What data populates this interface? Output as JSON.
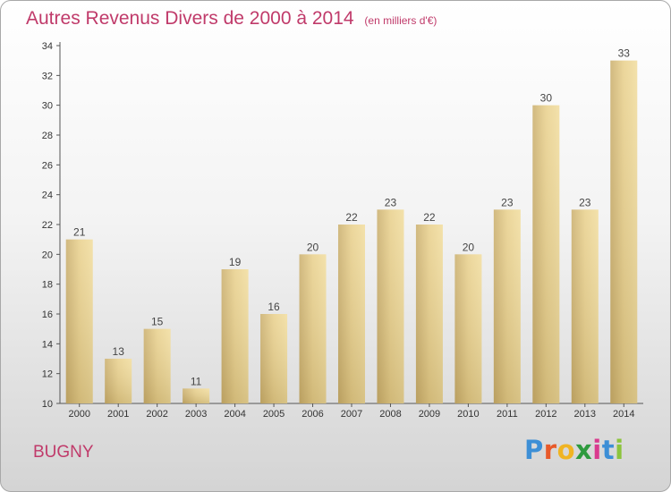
{
  "chart_data": {
    "type": "bar",
    "title": "Autres Revenus Divers de 2000 à 2014",
    "subtitle": "(en milliers d'€)",
    "categories": [
      "2000",
      "2001",
      "2002",
      "2003",
      "2004",
      "2005",
      "2006",
      "2007",
      "2008",
      "2009",
      "2010",
      "2011",
      "2012",
      "2013",
      "2014"
    ],
    "values": [
      21,
      13,
      15,
      11,
      19,
      16,
      20,
      22,
      23,
      22,
      20,
      23,
      30,
      23,
      33
    ],
    "ylim": [
      10,
      34
    ],
    "yticks": [
      10,
      12,
      14,
      16,
      18,
      20,
      22,
      24,
      26,
      28,
      30,
      32,
      34
    ],
    "xlabel": "",
    "ylabel": "",
    "grid": false,
    "bar_color": "#e8cf8a",
    "data_labels": true
  },
  "place_name": "BUGNY",
  "brand": {
    "letters": [
      "P",
      "r",
      "o",
      "x",
      "i",
      "t",
      "i"
    ],
    "colors": [
      "#3d8fd6",
      "#e85a2a",
      "#f0b423",
      "#2e9a3e",
      "#d93b8e",
      "#3d8fd6",
      "#8cc43c"
    ]
  },
  "colors": {
    "title": "#c03a6a",
    "text": "#333333"
  }
}
